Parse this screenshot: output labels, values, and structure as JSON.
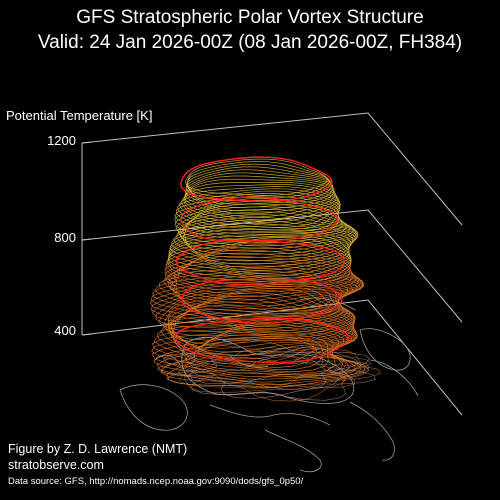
{
  "header": {
    "title_line1": "GFS Stratospheric Polar Vortex Structure",
    "title_line2": "Valid: 24 Jan 2026-00Z  (08 Jan 2026-00Z, FH384)"
  },
  "axis": {
    "label": "Potential Temperature [K]",
    "ticks": [
      "1200",
      "800",
      "400"
    ]
  },
  "credits": {
    "author": "Figure by Z. D. Lawrence (NMT)",
    "site": "stratobserve.com",
    "source": "Data source: GFS, http://nomads.ncep.noaa.gov:9090/dods/gfs_0p50/"
  },
  "colors": {
    "background": "#000000",
    "contour_red": "#ff2020",
    "contour_yellow": "#e8c030",
    "contour_orange": "#e07a20",
    "grid": "#bfbfbf",
    "map": "#9a9a9a"
  }
}
